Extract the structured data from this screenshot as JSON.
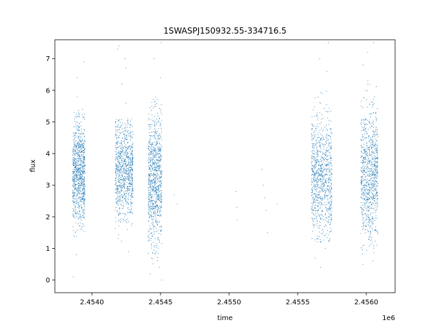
{
  "chart_data": {
    "type": "scatter",
    "title": "1SWASPJ150932.55-334716.5",
    "xlabel": "time",
    "ylabel": "flux",
    "x_offset_label": "1e6",
    "xlim": [
      2453730,
      2456210
    ],
    "ylim": [
      -0.4,
      7.6
    ],
    "xticks": [
      2454000,
      2454500,
      2455000,
      2455500,
      2456000
    ],
    "xtick_labels": [
      "2.4540",
      "2.4545",
      "2.4550",
      "2.4555",
      "2.4560"
    ],
    "yticks": [
      0,
      1,
      2,
      3,
      4,
      5,
      6,
      7
    ],
    "ytick_labels": [
      "0",
      "1",
      "2",
      "3",
      "4",
      "5",
      "6",
      "7"
    ],
    "grid": false,
    "point_color": "#1f77b4",
    "observing_seasons": [
      {
        "x_start": 2453860,
        "x_end": 2453950,
        "y_center": 3.4,
        "y_low": 1.2,
        "y_high": 5.4,
        "y_outliers": [
          0.1,
          5.8,
          6.4,
          6.9,
          0.8
        ]
      },
      {
        "x_start": 2454170,
        "x_end": 2454300,
        "y_center": 3.5,
        "y_low": 1.0,
        "y_high": 5.1,
        "y_outliers": [
          0.9,
          5.6,
          6.2,
          6.7,
          7.0,
          7.3,
          7.4
        ]
      },
      {
        "x_start": 2454410,
        "x_end": 2454510,
        "y_center": 3.2,
        "y_low": 0.5,
        "y_high": 5.8,
        "y_outliers": [
          0.0,
          0.2,
          0.4,
          0.7,
          6.4,
          7.0,
          7.5
        ]
      },
      {
        "x_start": 2455600,
        "x_end": 2455750,
        "y_center": 3.3,
        "y_low": 1.2,
        "y_high": 6.2,
        "y_outliers": [
          0.4,
          0.7,
          1.0,
          6.6,
          7.0,
          7.5
        ]
      },
      {
        "x_start": 2455960,
        "x_end": 2456085,
        "y_center": 3.4,
        "y_low": 0.8,
        "y_high": 6.3,
        "y_outliers": [
          0.5,
          0.6,
          6.8,
          7.2,
          7.5
        ]
      }
    ],
    "sparse_points": [
      {
        "x": 2454600,
        "y": 2.7
      },
      {
        "x": 2454620,
        "y": 2.4
      },
      {
        "x": 2455050,
        "y": 2.8
      },
      {
        "x": 2455055,
        "y": 2.3
      },
      {
        "x": 2455060,
        "y": 1.9
      },
      {
        "x": 2455240,
        "y": 3.5
      },
      {
        "x": 2455250,
        "y": 3.0
      },
      {
        "x": 2455260,
        "y": 2.6
      },
      {
        "x": 2455270,
        "y": 2.2
      },
      {
        "x": 2455280,
        "y": 1.5
      },
      {
        "x": 2455350,
        "y": 2.4
      }
    ]
  }
}
